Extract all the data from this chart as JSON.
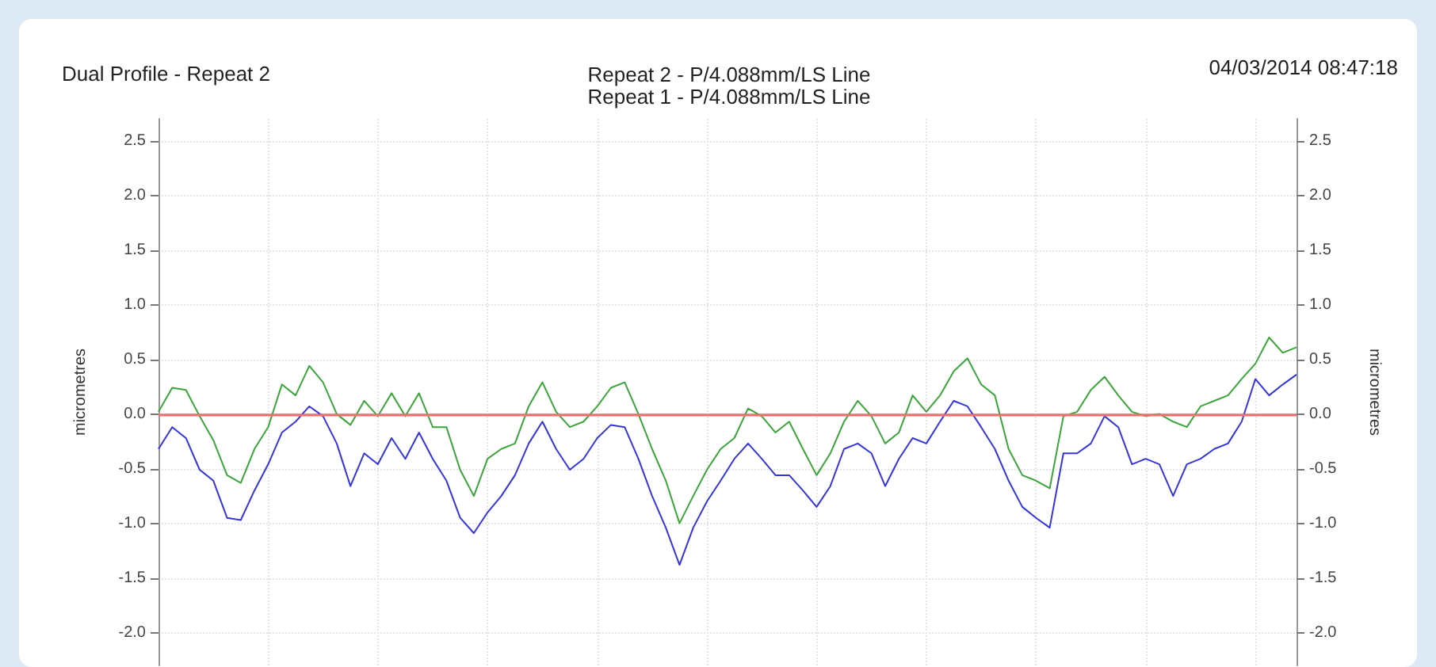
{
  "chart_data": {
    "type": "line",
    "title": "Dual Profile - Repeat 2",
    "subtitle": "Repeat 2 - P/4.088mm/LS Line\nRepeat 1 - P/4.088mm/LS Line",
    "annotations": [
      "04/03/2014 08:47:18"
    ],
    "ylabel": "micrometres",
    "y2label": "micrometres",
    "categories": [
      null,
      null,
      null,
      null,
      null,
      null,
      null,
      null,
      null,
      null,
      null,
      null,
      null,
      null,
      null,
      null,
      null,
      null,
      null,
      null,
      null,
      null,
      null,
      null,
      null,
      null,
      null,
      null,
      null,
      null,
      null,
      null,
      null,
      null,
      null,
      null,
      null,
      null,
      null,
      null,
      null,
      null,
      null,
      null,
      null,
      null,
      null,
      null,
      null,
      null,
      null,
      null,
      null,
      null,
      null,
      null,
      null,
      null,
      null,
      null,
      null,
      null,
      null,
      null,
      null,
      null,
      null,
      null,
      null,
      null,
      null,
      null,
      null,
      null,
      null,
      null,
      null,
      null,
      null,
      null,
      null,
      null,
      null,
      null
    ],
    "series": [
      {
        "color": "#3aa63a",
        "values": [
          0.02,
          0.24,
          0.22,
          -0.02,
          -0.24,
          -0.56,
          -0.63,
          -0.32,
          -0.12,
          0.27,
          0.17,
          0.44,
          0.29,
          0,
          -0.1,
          0.12,
          -0.02,
          0.19,
          -0.02,
          0.19,
          -0.12,
          -0.12,
          -0.51,
          -0.75,
          -0.41,
          -0.32,
          -0.27,
          0.07,
          0.29,
          0.02,
          -0.12,
          -0.07,
          0.07,
          0.24,
          0.29,
          0,
          -0.32,
          -0.61,
          -1.0,
          -0.75,
          -0.51,
          -0.32,
          -0.22,
          0.05,
          -0.02,
          -0.17,
          -0.07,
          -0.32,
          -0.56,
          -0.36,
          -0.07,
          0.12,
          -0.02,
          -0.27,
          -0.17,
          0.17,
          0.02,
          0.17,
          0.39,
          0.51,
          0.27,
          0.17,
          -0.32,
          -0.56,
          -0.61,
          -0.68,
          -0.02,
          0.02,
          0.22,
          0.34,
          0.17,
          0.02,
          -0.02,
          0,
          -0.07,
          -0.12,
          0.07,
          0.12,
          0.17,
          0.32,
          0.46,
          0.7,
          0.56,
          0.61
        ]
      },
      {
        "color": "#3535dd",
        "values": [
          -0.32,
          -0.12,
          -0.22,
          -0.51,
          -0.61,
          -0.95,
          -0.97,
          -0.7,
          -0.46,
          -0.17,
          -0.07,
          0.07,
          -0.02,
          -0.27,
          -0.66,
          -0.36,
          -0.46,
          -0.22,
          -0.41,
          -0.17,
          -0.41,
          -0.61,
          -0.95,
          -1.09,
          -0.9,
          -0.75,
          -0.56,
          -0.27,
          -0.07,
          -0.32,
          -0.51,
          -0.41,
          -0.22,
          -0.1,
          -0.12,
          -0.41,
          -0.75,
          -1.04,
          -1.38,
          -1.04,
          -0.8,
          -0.61,
          -0.41,
          -0.27,
          -0.41,
          -0.56,
          -0.56,
          -0.7,
          -0.85,
          -0.66,
          -0.32,
          -0.27,
          -0.36,
          -0.66,
          -0.41,
          -0.22,
          -0.27,
          -0.07,
          0.12,
          0.07,
          -0.12,
          -0.32,
          -0.61,
          -0.85,
          -0.95,
          -1.04,
          -0.36,
          -0.36,
          -0.27,
          -0.02,
          -0.12,
          -0.46,
          -0.41,
          -0.46,
          -0.75,
          -0.46,
          -0.41,
          -0.32,
          -0.27,
          -0.07,
          0.32,
          0.17,
          0.27,
          0.36
        ]
      }
    ],
    "ylim": [
      -2.3,
      2.7
    ],
    "yticks": [
      {
        "value": -2,
        "label": "-2.0"
      },
      {
        "value": -1.5,
        "label": "-1.5"
      },
      {
        "value": -1,
        "label": "-1.0"
      },
      {
        "value": -0.5,
        "label": "-0.5"
      },
      {
        "value": 0,
        "label": "0.0"
      },
      {
        "value": 0.5,
        "label": "0.5"
      },
      {
        "value": 1,
        "label": "1.0"
      },
      {
        "value": 1.5,
        "label": "1.5"
      },
      {
        "value": 2,
        "label": "2.0"
      },
      {
        "value": 2.5,
        "label": "2.5"
      }
    ],
    "y2lim": [
      -2.3,
      2.7
    ],
    "y2ticks": [
      {
        "value": -2,
        "label": "-2.0"
      },
      {
        "value": -1.5,
        "label": "-1.5"
      },
      {
        "value": -1,
        "label": "-1.0"
      },
      {
        "value": -0.5,
        "label": "-0.5"
      },
      {
        "value": 0,
        "label": "0.0"
      },
      {
        "value": 0.5,
        "label": "0.5"
      },
      {
        "value": 1,
        "label": "1.0"
      },
      {
        "value": 1.5,
        "label": "1.5"
      },
      {
        "value": 2,
        "label": "2.0"
      },
      {
        "value": 2.5,
        "label": "2.5"
      }
    ],
    "ref_lines": [
      {
        "axis": "y",
        "value": 0,
        "color": "#f07070"
      }
    ],
    "grid": true,
    "line_style": "solid",
    "tick_labels": "y"
  }
}
